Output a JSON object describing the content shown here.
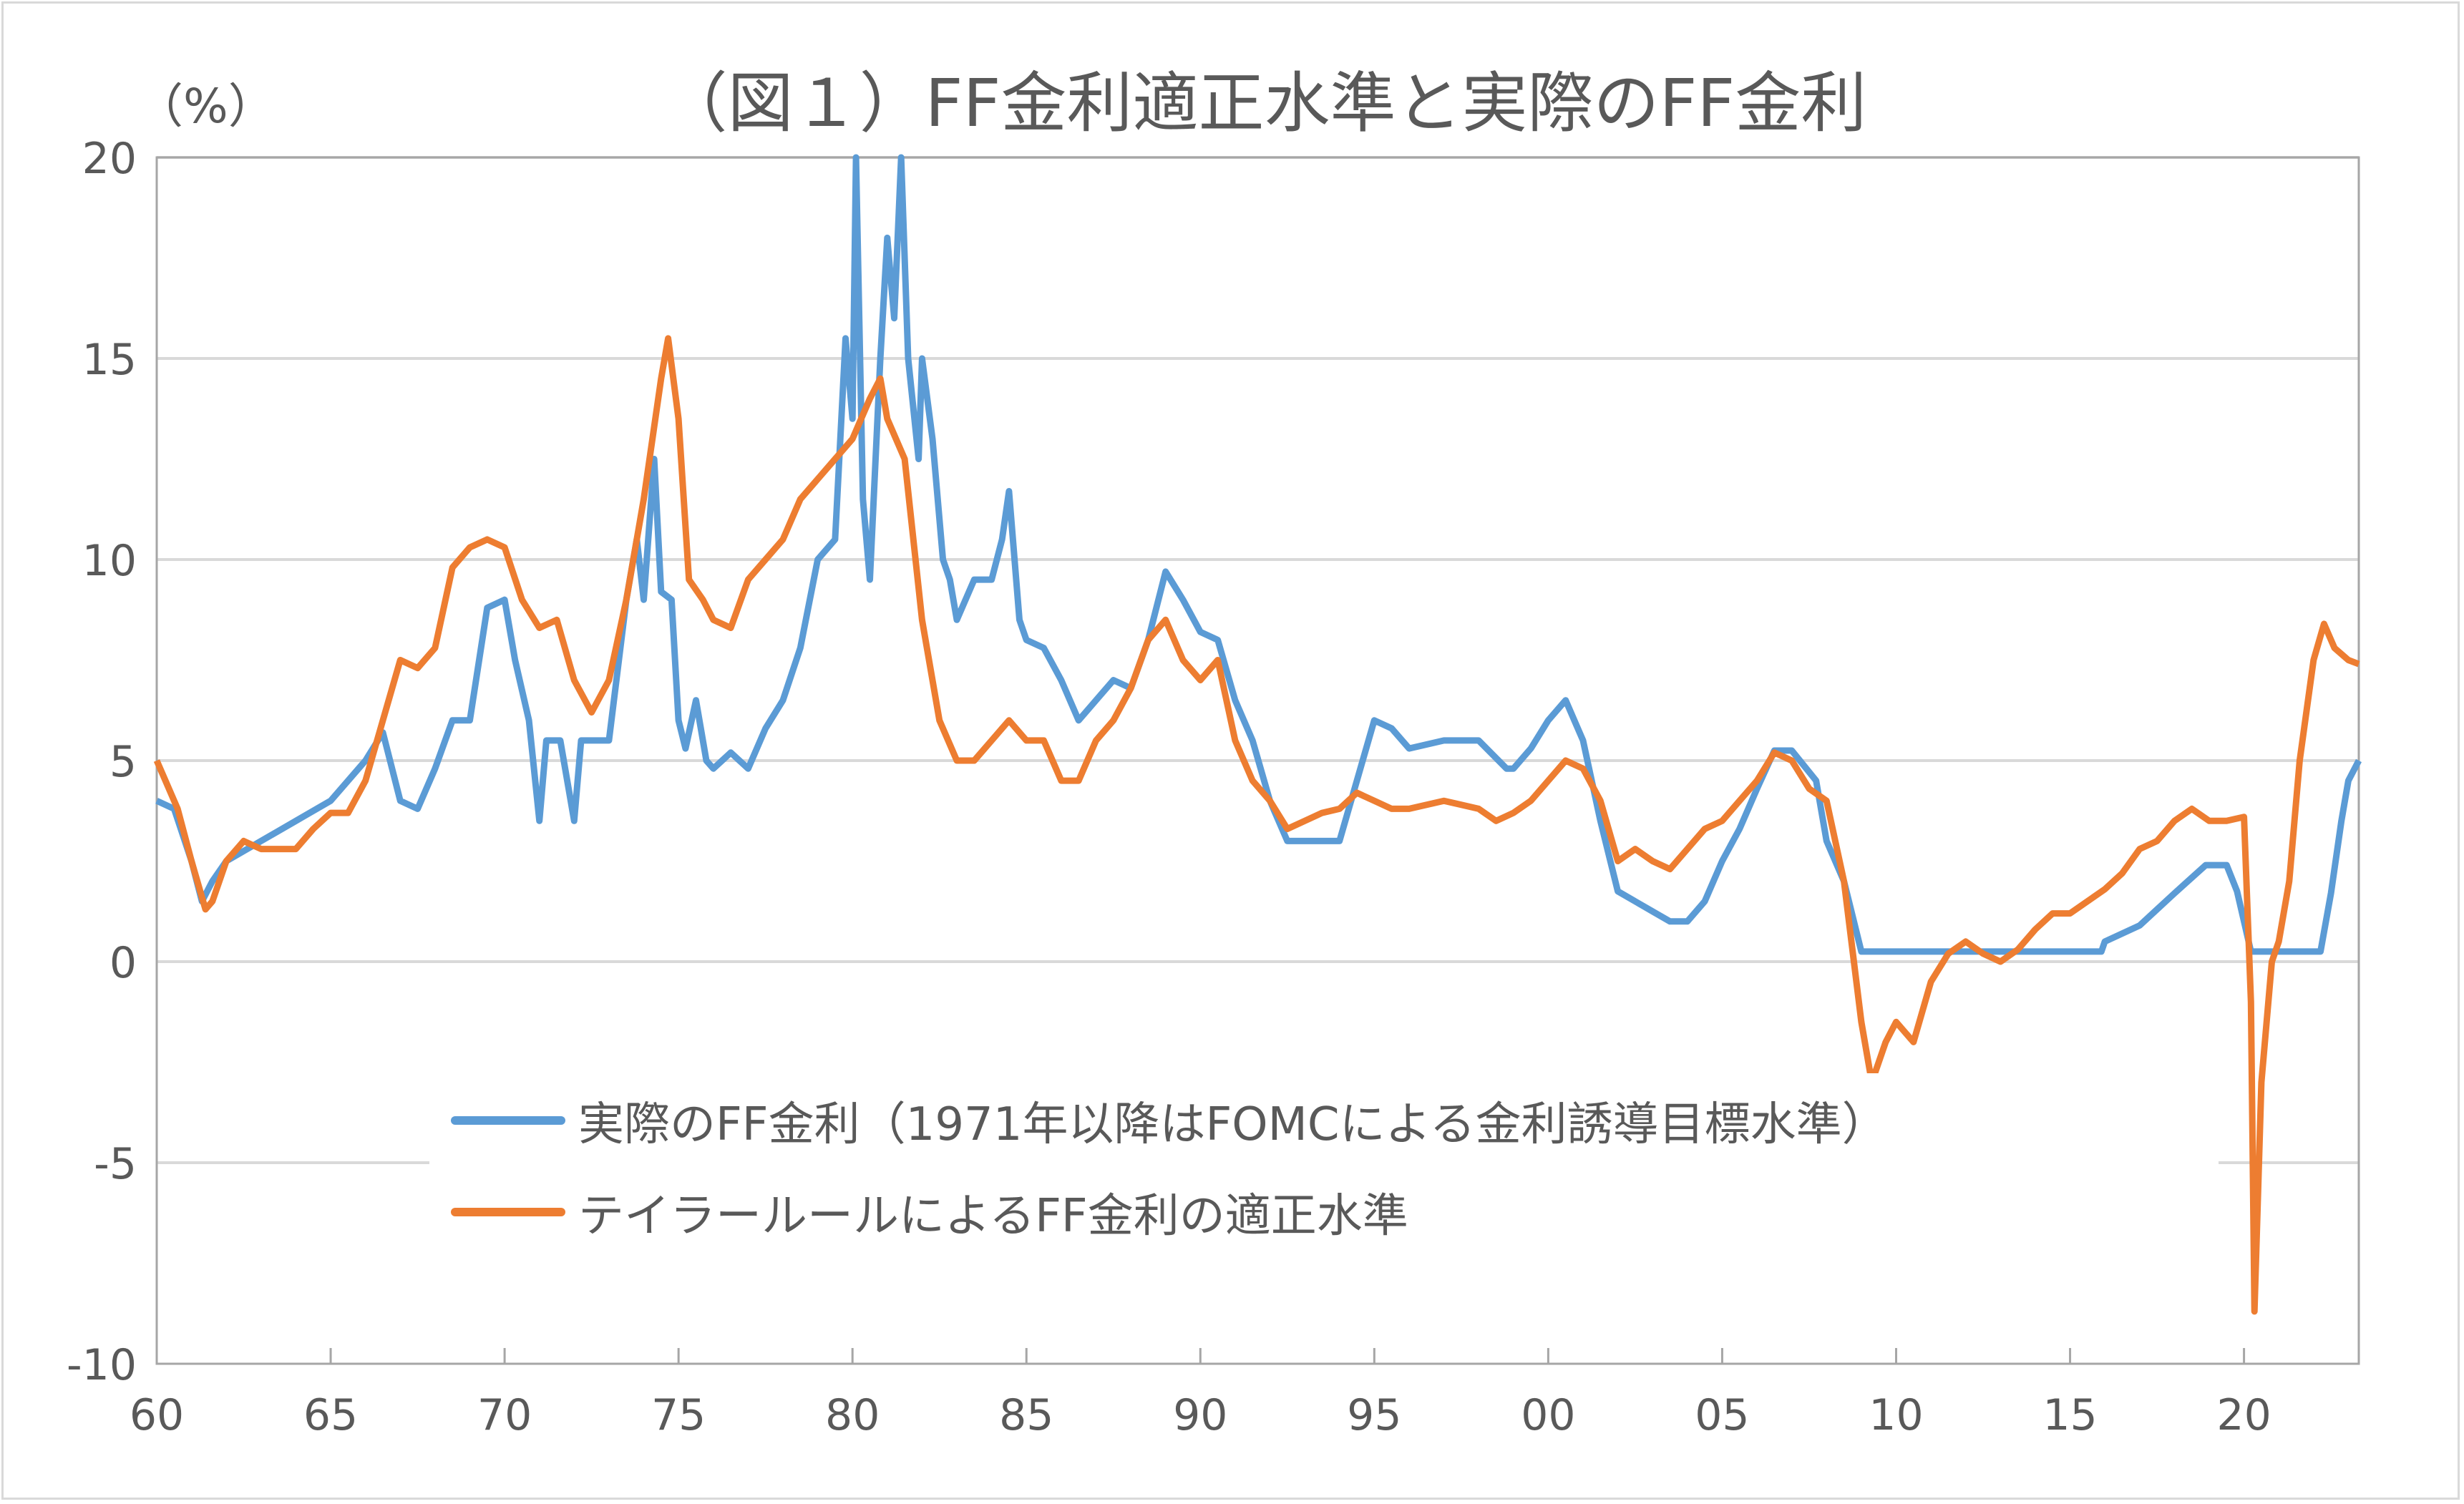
{
  "title": "（図１）FF金利適正水準と実際のFF金利",
  "y_unit": "（%）",
  "chart_data": {
    "type": "line",
    "title": "（図１）FF金利適正水準と実際のFF金利",
    "xlabel": "",
    "ylabel": "（%）",
    "xlim": [
      1960,
      2023.3
    ],
    "ylim": [
      -10,
      20
    ],
    "grid": true,
    "legend_position": "bottom-left inside",
    "x_ticks": [
      1960,
      1965,
      1970,
      1975,
      1980,
      1985,
      1990,
      1995,
      2000,
      2005,
      2010,
      2015,
      2020
    ],
    "x_tick_labels": [
      "60",
      "65",
      "70",
      "75",
      "80",
      "85",
      "90",
      "95",
      "00",
      "05",
      "10",
      "15",
      "20"
    ],
    "y_ticks": [
      -10,
      -5,
      0,
      5,
      10,
      15,
      20
    ],
    "y_tick_labels": [
      "-10",
      "-5",
      "0",
      "5",
      "10",
      "15",
      "20"
    ],
    "series": [
      {
        "name": "実際のFF金利（1971年以降はFOMCによる金利誘導目標水準）",
        "color": "#5b9bd5",
        "points": [
          [
            1960,
            4.0
          ],
          [
            1960.5,
            3.8
          ],
          [
            1961,
            2.5
          ],
          [
            1961.3,
            1.5
          ],
          [
            1961.6,
            2.0
          ],
          [
            1962,
            2.5
          ],
          [
            1963,
            3.0
          ],
          [
            1964,
            3.5
          ],
          [
            1965,
            4.0
          ],
          [
            1966,
            5.0
          ],
          [
            1966.5,
            5.7
          ],
          [
            1967,
            4.0
          ],
          [
            1967.5,
            3.8
          ],
          [
            1968,
            4.8
          ],
          [
            1968.5,
            6.0
          ],
          [
            1969,
            6.0
          ],
          [
            1969.5,
            8.8
          ],
          [
            1970,
            9.0
          ],
          [
            1970.3,
            7.5
          ],
          [
            1970.7,
            6.0
          ],
          [
            1971,
            3.5
          ],
          [
            1971.2,
            5.5
          ],
          [
            1971.6,
            5.5
          ],
          [
            1972,
            3.5
          ],
          [
            1972.2,
            5.5
          ],
          [
            1973,
            5.5
          ],
          [
            1973.5,
            9.0
          ],
          [
            1973.8,
            10.5
          ],
          [
            1974,
            9.0
          ],
          [
            1974.3,
            12.5
          ],
          [
            1974.5,
            9.2
          ],
          [
            1974.8,
            9.0
          ],
          [
            1975,
            6.0
          ],
          [
            1975.2,
            5.3
          ],
          [
            1975.5,
            6.5
          ],
          [
            1975.8,
            5.0
          ],
          [
            1976,
            4.8
          ],
          [
            1976.5,
            5.2
          ],
          [
            1977,
            4.8
          ],
          [
            1977.5,
            5.8
          ],
          [
            1978,
            6.5
          ],
          [
            1978.5,
            7.8
          ],
          [
            1979,
            10.0
          ],
          [
            1979.5,
            10.5
          ],
          [
            1979.8,
            15.5
          ],
          [
            1980,
            13.5
          ],
          [
            1980.1,
            20
          ],
          [
            1980.3,
            11.5
          ],
          [
            1980.5,
            9.5
          ],
          [
            1980.8,
            15
          ],
          [
            1981,
            18
          ],
          [
            1981.2,
            16
          ],
          [
            1981.4,
            20
          ],
          [
            1981.6,
            15.0
          ],
          [
            1981.9,
            12.5
          ],
          [
            1982,
            15
          ],
          [
            1982.3,
            13
          ],
          [
            1982.6,
            10
          ],
          [
            1982.8,
            9.5
          ],
          [
            1983,
            8.5
          ],
          [
            1983.5,
            9.5
          ],
          [
            1984,
            9.5
          ],
          [
            1984.3,
            10.5
          ],
          [
            1984.5,
            11.7
          ],
          [
            1984.8,
            8.5
          ],
          [
            1985,
            8.0
          ],
          [
            1985.5,
            7.8
          ],
          [
            1986,
            7.0
          ],
          [
            1986.5,
            6.0
          ],
          [
            1987,
            6.5
          ],
          [
            1987.5,
            7.0
          ],
          [
            1988,
            6.8
          ],
          [
            1988.5,
            8.0
          ],
          [
            1989,
            9.7
          ],
          [
            1989.5,
            9.0
          ],
          [
            1990,
            8.2
          ],
          [
            1990.5,
            8.0
          ],
          [
            1991,
            6.5
          ],
          [
            1991.5,
            5.5
          ],
          [
            1992,
            4.0
          ],
          [
            1992.5,
            3.0
          ],
          [
            1993,
            3.0
          ],
          [
            1994,
            3.0
          ],
          [
            1994.5,
            4.5
          ],
          [
            1995,
            6.0
          ],
          [
            1995.5,
            5.8
          ],
          [
            1996,
            5.3
          ],
          [
            1997,
            5.5
          ],
          [
            1998,
            5.5
          ],
          [
            1998.8,
            4.8
          ],
          [
            1999,
            4.8
          ],
          [
            1999.5,
            5.3
          ],
          [
            2000,
            6.0
          ],
          [
            2000.5,
            6.5
          ],
          [
            2001,
            5.5
          ],
          [
            2001.5,
            3.5
          ],
          [
            2002,
            1.75
          ],
          [
            2003,
            1.25
          ],
          [
            2003.5,
            1.0
          ],
          [
            2004,
            1.0
          ],
          [
            2004.5,
            1.5
          ],
          [
            2005,
            2.5
          ],
          [
            2005.5,
            3.3
          ],
          [
            2006,
            4.3
          ],
          [
            2006.5,
            5.25
          ],
          [
            2007,
            5.25
          ],
          [
            2007.7,
            4.5
          ],
          [
            2008,
            3.0
          ],
          [
            2008.5,
            2.0
          ],
          [
            2009,
            0.25
          ],
          [
            2015.9,
            0.25
          ],
          [
            2016,
            0.5
          ],
          [
            2017,
            0.9
          ],
          [
            2018,
            1.7
          ],
          [
            2018.9,
            2.4
          ],
          [
            2019.5,
            2.4
          ],
          [
            2019.8,
            1.75
          ],
          [
            2020.2,
            0.25
          ],
          [
            2022.2,
            0.25
          ],
          [
            2022.5,
            1.7
          ],
          [
            2022.8,
            3.5
          ],
          [
            2023,
            4.5
          ],
          [
            2023.3,
            5.0
          ]
        ]
      },
      {
        "name": "テイラールールによるFF金利の適正水準",
        "color": "#ed7d31",
        "points": [
          [
            1960,
            5.0
          ],
          [
            1960.3,
            4.4
          ],
          [
            1960.6,
            3.8
          ],
          [
            1961,
            2.5
          ],
          [
            1961.4,
            1.3
          ],
          [
            1961.6,
            1.5
          ],
          [
            1962,
            2.5
          ],
          [
            1962.5,
            3.0
          ],
          [
            1963,
            2.8
          ],
          [
            1964,
            2.8
          ],
          [
            1964.5,
            3.3
          ],
          [
            1965,
            3.7
          ],
          [
            1965.5,
            3.7
          ],
          [
            1966,
            4.5
          ],
          [
            1966.5,
            6.0
          ],
          [
            1967,
            7.5
          ],
          [
            1967.5,
            7.3
          ],
          [
            1968,
            7.8
          ],
          [
            1968.5,
            9.8
          ],
          [
            1969,
            10.3
          ],
          [
            1969.5,
            10.5
          ],
          [
            1970,
            10.3
          ],
          [
            1970.5,
            9.0
          ],
          [
            1971,
            8.3
          ],
          [
            1971.5,
            8.5
          ],
          [
            1972,
            7.0
          ],
          [
            1972.5,
            6.2
          ],
          [
            1973,
            7.0
          ],
          [
            1973.5,
            9.0
          ],
          [
            1974,
            11.5
          ],
          [
            1974.5,
            14.5
          ],
          [
            1974.7,
            15.5
          ],
          [
            1975,
            13.5
          ],
          [
            1975.3,
            9.5
          ],
          [
            1975.7,
            9.0
          ],
          [
            1976,
            8.5
          ],
          [
            1976.5,
            8.3
          ],
          [
            1977,
            9.5
          ],
          [
            1977.5,
            10.0
          ],
          [
            1978,
            10.5
          ],
          [
            1978.5,
            11.5
          ],
          [
            1979,
            12.0
          ],
          [
            1979.5,
            12.5
          ],
          [
            1980,
            13.0
          ],
          [
            1980.5,
            14.0
          ],
          [
            1980.8,
            14.5
          ],
          [
            1981,
            13.5
          ],
          [
            1981.5,
            12.5
          ],
          [
            1982,
            8.5
          ],
          [
            1982.5,
            6.0
          ],
          [
            1983,
            5.0
          ],
          [
            1983.5,
            5.0
          ],
          [
            1984,
            5.5
          ],
          [
            1984.5,
            6.0
          ],
          [
            1985,
            5.5
          ],
          [
            1985.5,
            5.5
          ],
          [
            1986,
            4.5
          ],
          [
            1986.5,
            4.5
          ],
          [
            1987,
            5.5
          ],
          [
            1987.5,
            6.0
          ],
          [
            1988,
            6.8
          ],
          [
            1988.5,
            8.0
          ],
          [
            1989,
            8.5
          ],
          [
            1989.5,
            7.5
          ],
          [
            1990,
            7.0
          ],
          [
            1990.5,
            7.5
          ],
          [
            1991,
            5.5
          ],
          [
            1991.5,
            4.5
          ],
          [
            1992,
            4.0
          ],
          [
            1992.5,
            3.3
          ],
          [
            1993,
            3.5
          ],
          [
            1993.5,
            3.7
          ],
          [
            1994,
            3.8
          ],
          [
            1994.5,
            4.2
          ],
          [
            1995,
            4.0
          ],
          [
            1995.5,
            3.8
          ],
          [
            1996,
            3.8
          ],
          [
            1997,
            4.0
          ],
          [
            1998,
            3.8
          ],
          [
            1998.5,
            3.5
          ],
          [
            1999,
            3.7
          ],
          [
            1999.5,
            4.0
          ],
          [
            2000,
            4.5
          ],
          [
            2000.5,
            5.0
          ],
          [
            2001,
            4.8
          ],
          [
            2001.5,
            4.0
          ],
          [
            2002,
            2.5
          ],
          [
            2002.5,
            2.8
          ],
          [
            2003,
            2.5
          ],
          [
            2003.5,
            2.3
          ],
          [
            2004,
            2.8
          ],
          [
            2004.5,
            3.3
          ],
          [
            2005,
            3.5
          ],
          [
            2005.5,
            4.0
          ],
          [
            2006,
            4.5
          ],
          [
            2006.5,
            5.2
          ],
          [
            2007,
            5.0
          ],
          [
            2007.5,
            4.3
          ],
          [
            2008,
            4.0
          ],
          [
            2008.5,
            2.0
          ],
          [
            2009,
            -1.5
          ],
          [
            2009.3,
            -3.0
          ],
          [
            2009.7,
            -2.0
          ],
          [
            2010,
            -1.5
          ],
          [
            2010.5,
            -2.0
          ],
          [
            2011,
            -0.5
          ],
          [
            2011.5,
            0.2
          ],
          [
            2012,
            0.5
          ],
          [
            2012.5,
            0.2
          ],
          [
            2013,
            0.0
          ],
          [
            2013.5,
            0.3
          ],
          [
            2014,
            0.8
          ],
          [
            2014.5,
            1.2
          ],
          [
            2015,
            1.2
          ],
          [
            2015.5,
            1.5
          ],
          [
            2016,
            1.8
          ],
          [
            2016.5,
            2.2
          ],
          [
            2017,
            2.8
          ],
          [
            2017.5,
            3.0
          ],
          [
            2018,
            3.5
          ],
          [
            2018.5,
            3.8
          ],
          [
            2019,
            3.5
          ],
          [
            2019.5,
            3.5
          ],
          [
            2020,
            3.6
          ],
          [
            2020.2,
            -1.0
          ],
          [
            2020.3,
            -8.7
          ],
          [
            2020.5,
            -3.0
          ],
          [
            2020.8,
            0.0
          ],
          [
            2021,
            0.5
          ],
          [
            2021.3,
            2.0
          ],
          [
            2021.6,
            5.0
          ],
          [
            2022,
            7.5
          ],
          [
            2022.3,
            8.4
          ],
          [
            2022.6,
            7.8
          ],
          [
            2023,
            7.5
          ],
          [
            2023.3,
            7.4
          ]
        ]
      }
    ]
  }
}
